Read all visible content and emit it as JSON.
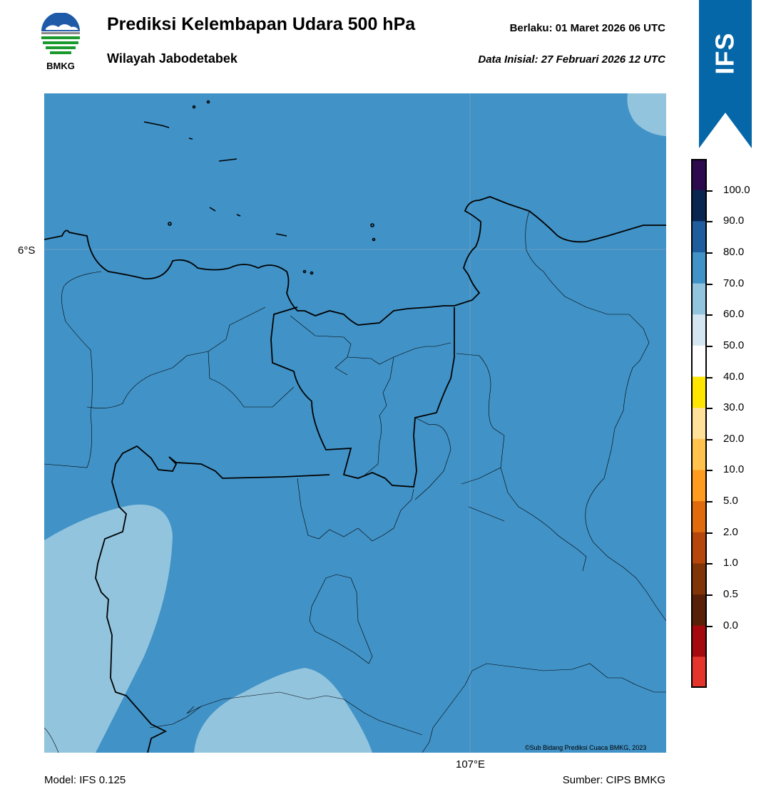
{
  "header": {
    "title": "Prediksi Kelembapan Udara 500 hPa",
    "subtitle": "Wilayah Jabodetabek",
    "valid": "Berlaku:  01 Maret 2026 06 UTC",
    "initial": "Data Inisial:  27 Februari 2026 12 UTC"
  },
  "logo": {
    "text": "BMKG",
    "icon": "bmkg-logo-icon"
  },
  "banner": {
    "text": "IFS",
    "color": "#0567a8"
  },
  "map": {
    "lat_label": "6°S",
    "lon_label": "107°E",
    "copyright": "©Sub Bidang Prediksi Cuaca BMKG, 2023",
    "base_fill_color": "#4192c6",
    "light_fill_color": "#92c4de"
  },
  "footer": {
    "model": "Model: IFS 0.125",
    "source": "Sumber: CIPS BMKG"
  },
  "colorbar": {
    "labels": [
      "100.0",
      "90.0",
      "80.0",
      "70.0",
      "60.0",
      "50.0",
      "40.0",
      "30.0",
      "20.0",
      "10.0",
      "5.0",
      "2.0",
      "1.0",
      "0.5",
      "0.0"
    ],
    "colors": [
      "#2d0a4e",
      "#08264f",
      "#1f5d9f",
      "#4192c6",
      "#92c4de",
      "#d4e6f1",
      "#ffffff",
      "#ffe600",
      "#ffe19a",
      "#ffc24d",
      "#ff9b1f",
      "#e06a0e",
      "#b6470c",
      "#823409",
      "#582006",
      "#a5090e",
      "#e3352b"
    ]
  }
}
